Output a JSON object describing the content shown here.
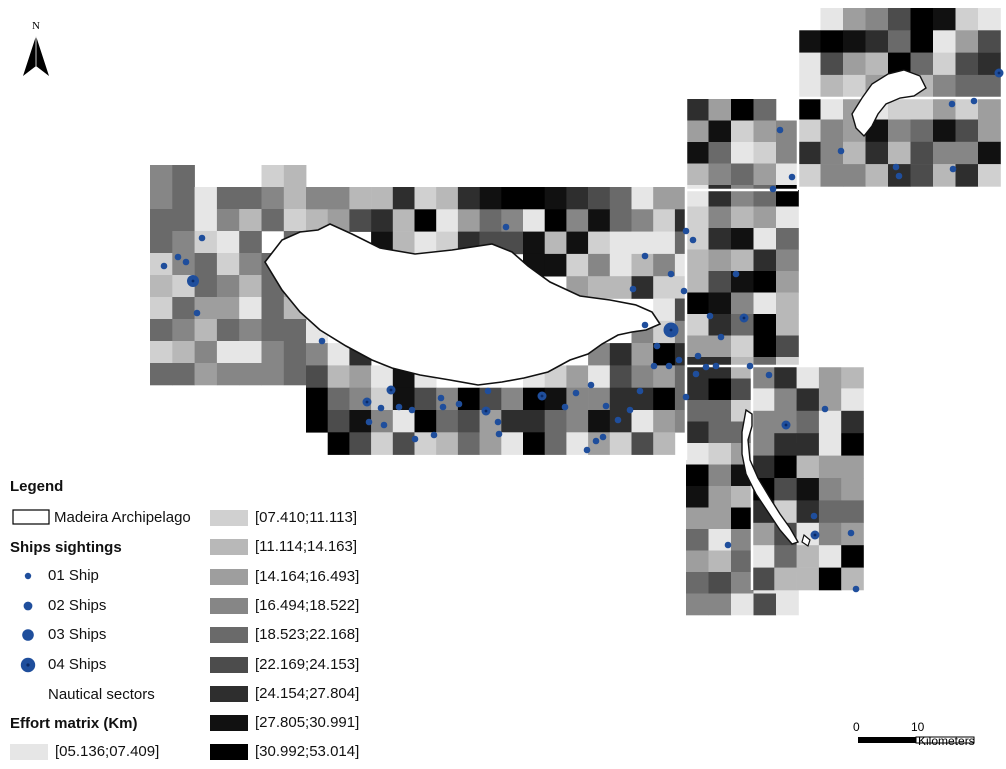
{
  "map": {
    "north_label": "N",
    "colors": {
      "ship_fill": "#1f4e9c",
      "coast_stroke": "#111111",
      "land": "#ffffff",
      "effort_classes": [
        "#e6e6e6",
        "#d0d0d0",
        "#b8b8b8",
        "#9e9e9e",
        "#868686",
        "#6a6a6a",
        "#4c4c4c",
        "#2e2e2e",
        "#111111",
        "#000000"
      ]
    }
  },
  "legend": {
    "title": "Legend",
    "archipelago": "Madeira Archipelago",
    "sightings_title": "Ships sightings",
    "ship1": "01 Ship",
    "ship2": "02 Ships",
    "ship3": "03 Ships",
    "ship4": "04 Ships",
    "nautical": "Nautical sectors",
    "effort_title": "Effort matrix (Km)",
    "classes": [
      "[05.136;07.409]",
      "[07.410;11.113]",
      "[11.114;14.163]",
      "[14.164;16.493]",
      "[16.494;18.522]",
      "[18.523;22.168]",
      "[22.169;24.153]",
      "[24.154;27.804]",
      "[27.805;30.991]",
      "[30.992;53.014]"
    ]
  },
  "scalebar": {
    "start": "0",
    "mid": "10",
    "unit": "Kilometers"
  }
}
